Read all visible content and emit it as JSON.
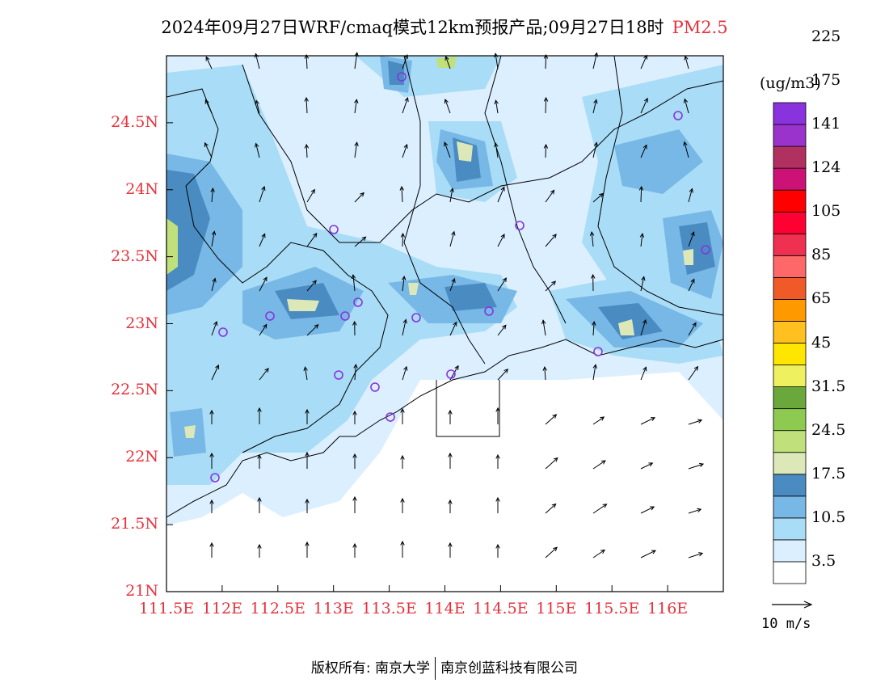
{
  "title": {
    "main": "2024年09月27日WRF/cmaq模式12km预报产品;09月27日18时",
    "pollutant": "PM2.5"
  },
  "map": {
    "lon_range": [
      111.5,
      116.5
    ],
    "lat_range": [
      21.0,
      25.0
    ],
    "lat_labels": [
      "24.5N",
      "24N",
      "23.5N",
      "23N",
      "22.5N",
      "22N",
      "21.5N",
      "21N"
    ],
    "lat_values": [
      24.5,
      24.0,
      23.5,
      23.0,
      22.5,
      22.0,
      21.5,
      21.0
    ],
    "lon_labels": [
      "111.5E",
      "112E",
      "112.5E",
      "113E",
      "113.5E",
      "114E",
      "114.5E",
      "115E",
      "115.5E",
      "116E"
    ],
    "lon_values": [
      111.5,
      112.0,
      112.5,
      113.0,
      113.5,
      114.0,
      114.5,
      115.0,
      115.5,
      116.0
    ]
  },
  "colorbar": {
    "unit": "(ug/m3)",
    "colors": [
      "#ffffff",
      "#dcefff",
      "#a9dcf6",
      "#78b8e6",
      "#4a8cc2",
      "#dde8b8",
      "#bfe07a",
      "#8ec950",
      "#6aa83c",
      "#eef060",
      "#ffe600",
      "#ffc020",
      "#ff9900",
      "#f05a28",
      "#ff6868",
      "#f03050",
      "#ff0033",
      "#ff0000",
      "#cc1177",
      "#b03060",
      "#9933cc",
      "#8833dd"
    ],
    "labels": [
      "3.5",
      "10.5",
      "17.5",
      "24.5",
      "31.5",
      "45",
      "65",
      "85",
      "105",
      "124",
      "141",
      "175",
      "225"
    ]
  },
  "wind_reference": {
    "label": "10 m/s"
  },
  "footer": {
    "left": "版权所有: 南京大学",
    "right": "南京创蓝科技有限公司"
  }
}
